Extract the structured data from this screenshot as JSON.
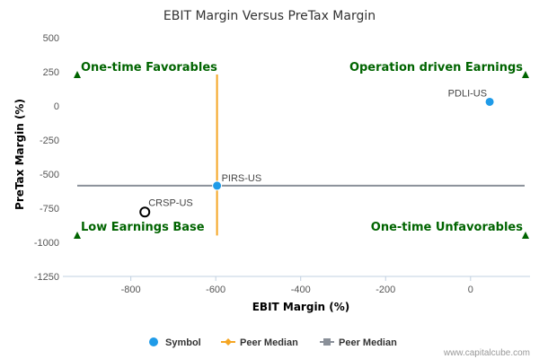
{
  "chart_data": {
    "type": "scatter",
    "title": "EBIT Margin Versus PreTax Margin",
    "xlabel": "EBIT Margin (%)",
    "ylabel": "PreTax Margin (%)",
    "xlim": [
      -960,
      140
    ],
    "ylim": [
      -1250,
      500
    ],
    "x_ticks": [
      -800,
      -600,
      -400,
      -200,
      0
    ],
    "y_ticks": [
      500,
      250,
      0,
      -250,
      -500,
      -750,
      -1000,
      -1250
    ],
    "grid": false,
    "points": [
      {
        "label": "PDLI-US",
        "x": 45,
        "y": 30,
        "style": "filled",
        "color": "#1f9be8"
      },
      {
        "label": "PIRS-US",
        "x": -597,
        "y": -585,
        "style": "filled",
        "color": "#1f9be8"
      },
      {
        "label": "CRSP-US",
        "x": -767,
        "y": -778,
        "style": "hollow",
        "color": "#000000"
      }
    ],
    "median_lines": {
      "x_median": -597,
      "x_median_y_range": [
        -950,
        230
      ],
      "x_median_color": "#f5a623",
      "y_median": -585,
      "y_median_color": "#8a9099"
    },
    "quadrant_labels": [
      {
        "text": "One-time Favorables",
        "position": "top-left"
      },
      {
        "text": "Operation driven Earnings",
        "position": "top-right"
      },
      {
        "text": "Low Earnings Base",
        "position": "bottom-left"
      },
      {
        "text": "One-time Unfavorables",
        "position": "bottom-right"
      }
    ],
    "quadrant_color": "#006400",
    "legend": {
      "position": "bottom-center",
      "items": [
        {
          "label": "Symbol",
          "kind": "symbol",
          "color": "#1f9be8"
        },
        {
          "label": "Peer Median",
          "kind": "line-diamond",
          "color": "#f5a623"
        },
        {
          "label": "Peer Median",
          "kind": "line-square",
          "color": "#8a9099"
        }
      ]
    },
    "credit": "www.capitalcube.com"
  }
}
